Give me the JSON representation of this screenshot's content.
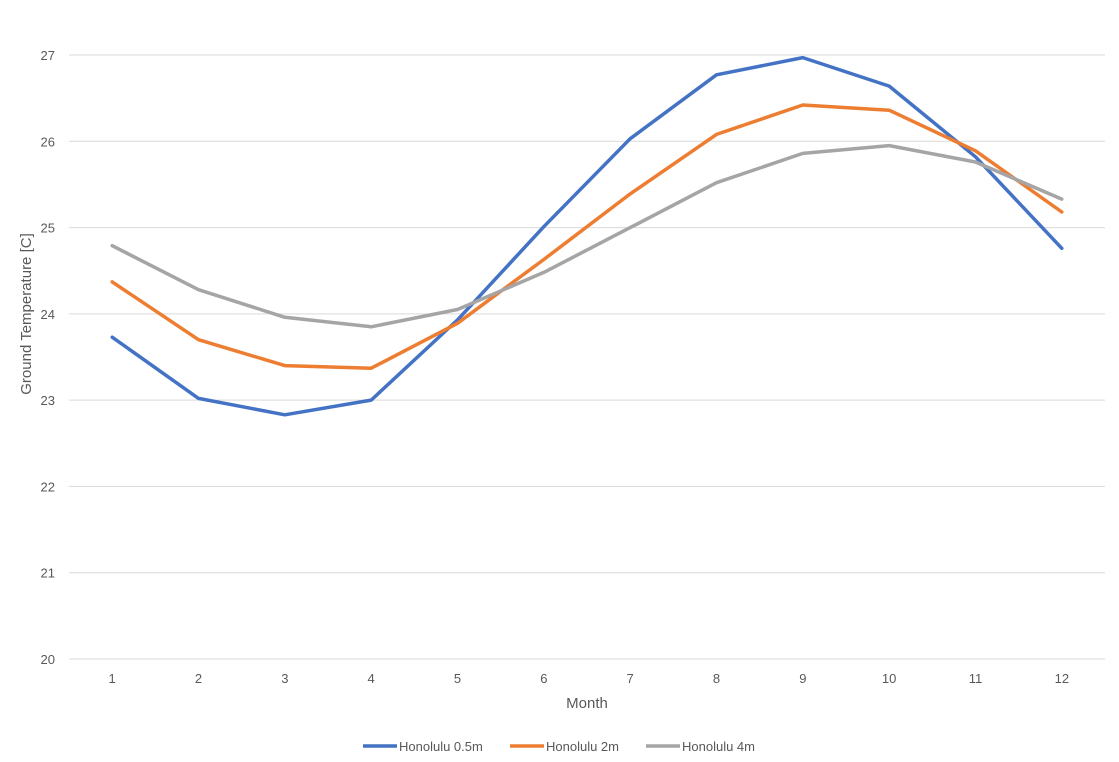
{
  "chart_data": {
    "type": "line",
    "title": "",
    "xlabel": "Month",
    "ylabel": "Ground Temperature [C]",
    "x": [
      1,
      2,
      3,
      4,
      5,
      6,
      7,
      8,
      9,
      10,
      11,
      12
    ],
    "xtick_labels": [
      "1",
      "2",
      "3",
      "4",
      "5",
      "6",
      "7",
      "8",
      "9",
      "10",
      "11",
      "12"
    ],
    "ylim": [
      20,
      27
    ],
    "yticks": [
      20,
      21,
      22,
      23,
      24,
      25,
      26,
      27
    ],
    "ytick_labels": [
      "20",
      "21",
      "22",
      "23",
      "24",
      "25",
      "26",
      "27"
    ],
    "grid": "horizontal",
    "legend_position": "bottom",
    "series": [
      {
        "name": "Honolulu 0.5m",
        "color": "#4472C4",
        "values": [
          23.73,
          23.02,
          22.83,
          23.0,
          23.93,
          25.01,
          26.03,
          26.77,
          26.97,
          26.64,
          25.82,
          24.76
        ]
      },
      {
        "name": "Honolulu 2m",
        "color": "#ED7D31",
        "values": [
          24.37,
          23.7,
          23.4,
          23.37,
          23.89,
          24.63,
          25.39,
          26.08,
          26.42,
          26.36,
          25.89,
          25.18
        ]
      },
      {
        "name": "Honolulu 4m",
        "color": "#A5A5A5",
        "values": [
          24.79,
          24.28,
          23.96,
          23.85,
          24.05,
          24.48,
          25.0,
          25.52,
          25.86,
          25.95,
          25.76,
          25.33
        ]
      }
    ]
  }
}
